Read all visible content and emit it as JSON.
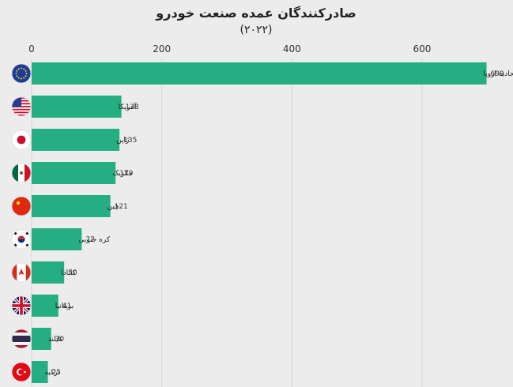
{
  "chart_data": {
    "type": "bar",
    "orientation": "horizontal",
    "title": "صادرکنندگان عمده صنعت خودرو",
    "subtitle": "(۲۰۲۲)",
    "categories": [
      "اتحادیه اروپا",
      "آمریکا",
      "ژاپن",
      "مکزیک",
      "چین",
      "کره جنوبی",
      "کانادا",
      "بریتانیا",
      "تایلند",
      "ترکیه"
    ],
    "values": [
      699,
      138,
      135,
      129,
      121,
      77,
      50,
      41,
      30,
      25
    ],
    "value_labels": [
      "699",
      "138",
      "135",
      "129",
      "121",
      "77",
      "50",
      "41",
      "30",
      "25"
    ],
    "flag_icons": [
      "eu-flag-icon",
      "usa-flag-icon",
      "japan-flag-icon",
      "mexico-flag-icon",
      "china-flag-icon",
      "south-korea-flag-icon",
      "canada-flag-icon",
      "uk-flag-icon",
      "thailand-flag-icon",
      "turkey-flag-icon"
    ],
    "xlim": [
      0,
      700
    ],
    "xticks": [
      0,
      200,
      400,
      600
    ],
    "xtick_labels": [
      "0",
      "200",
      "400",
      "600"
    ],
    "axis_position": "top",
    "grid": true,
    "bar_color": "#26ae83",
    "background_color": "#ececec"
  }
}
